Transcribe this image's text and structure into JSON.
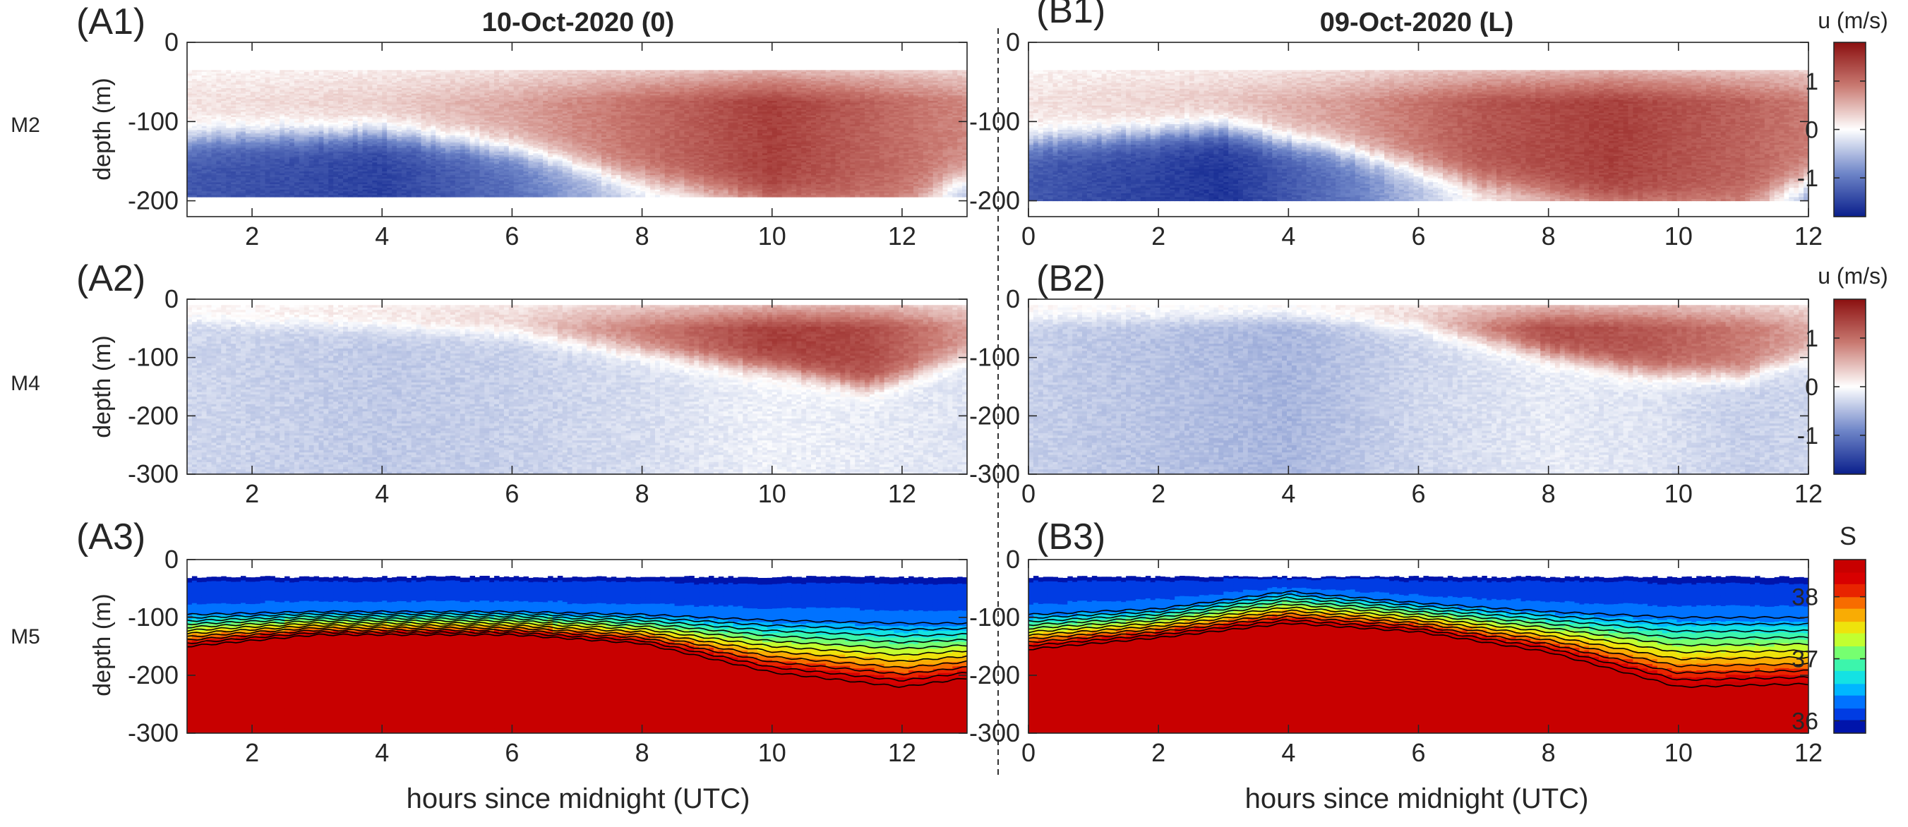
{
  "figure": {
    "columns": [
      {
        "title": "10-Oct-2020 (0)",
        "xlabel": "hours since midnight (UTC)"
      },
      {
        "title": "09-Oct-2020 (L)",
        "xlabel": "hours since midnight (UTC)"
      }
    ],
    "rows": [
      {
        "mooring": "M2",
        "ylabel": "depth (m)"
      },
      {
        "mooring": "M4",
        "ylabel": "depth (m)"
      },
      {
        "mooring": "M5",
        "ylabel": "depth (m)"
      }
    ],
    "colorbars": [
      {
        "label": "u (m/s)",
        "ticks": [
          "1",
          "0",
          "-1"
        ],
        "range": [
          -1.8,
          1.8
        ],
        "colors": [
          "#0a1f8c",
          "#6f86c8",
          "#ffffff",
          "#c97a72",
          "#8b1010"
        ]
      },
      {
        "label": "u (m/s)",
        "ticks": [
          "1",
          "0",
          "-1"
        ],
        "range": [
          -1.8,
          1.8
        ],
        "colors": [
          "#0a1f8c",
          "#6f86c8",
          "#ffffff",
          "#c97a72",
          "#8b1010"
        ]
      },
      {
        "label": "S",
        "ticks": [
          "38",
          "37",
          "36"
        ],
        "range": [
          35.8,
          38.6
        ],
        "colors": [
          "#00008f",
          "#0050ff",
          "#00d8ff",
          "#50ff90",
          "#e8ff10",
          "#ff9000",
          "#e00000",
          "#c00000"
        ]
      }
    ]
  },
  "chart_data": [
    {
      "panel": "(A1)",
      "type": "heatmap",
      "variable": "u (m/s)",
      "x": [
        2,
        4,
        6,
        8,
        10,
        12
      ],
      "xlim": [
        1,
        13
      ],
      "ylim": [
        -220,
        0
      ],
      "yticks": [
        0,
        -100,
        -200
      ],
      "xtick_labels": [
        "2",
        "4",
        "6",
        "8",
        "10",
        "12"
      ],
      "ytick_labels": [
        "0",
        "-100",
        "-200"
      ],
      "data_top": -35,
      "profiles": [
        {
          "x": 1,
          "bottom": -195,
          "u_upper": 0.2,
          "u_lower": -1.3,
          "interface": -120
        },
        {
          "x": 4,
          "bottom": -195,
          "u_upper": 0.35,
          "u_lower": -1.5,
          "interface": -115
        },
        {
          "x": 6,
          "bottom": -195,
          "u_upper": 0.6,
          "u_lower": -1.1,
          "interface": -135
        },
        {
          "x": 8,
          "bottom": -195,
          "u_upper": 1.0,
          "u_lower": -0.3,
          "interface": -175
        },
        {
          "x": 10,
          "bottom": -195,
          "u_upper": 1.4,
          "u_lower": 0.3,
          "interface": -200
        },
        {
          "x": 12,
          "bottom": -195,
          "u_upper": 1.0,
          "u_lower": 0.6,
          "interface": -200
        },
        {
          "x": 13,
          "bottom": -195,
          "u_upper": 0.8,
          "u_lower": -0.6,
          "interface": -170
        }
      ]
    },
    {
      "panel": "(B1)",
      "type": "heatmap",
      "variable": "u (m/s)",
      "x": [
        0,
        2,
        4,
        6,
        8,
        10,
        12
      ],
      "xlim": [
        0,
        12
      ],
      "ylim": [
        -220,
        0
      ],
      "yticks": [
        0,
        -100,
        -200
      ],
      "xtick_labels": [
        "0",
        "2",
        "4",
        "6",
        "8",
        "10",
        "12"
      ],
      "ytick_labels": [
        "0",
        "-100",
        "-200"
      ],
      "data_top": -35,
      "profiles": [
        {
          "x": 0,
          "bottom": -200,
          "u_upper": 0.2,
          "u_lower": -1.3,
          "interface": -125
        },
        {
          "x": 3,
          "bottom": -200,
          "u_upper": 0.4,
          "u_lower": -1.6,
          "interface": -110
        },
        {
          "x": 5,
          "bottom": -200,
          "u_upper": 0.7,
          "u_lower": -1.0,
          "interface": -140
        },
        {
          "x": 7,
          "bottom": -200,
          "u_upper": 1.2,
          "u_lower": 0.0,
          "interface": -180
        },
        {
          "x": 9,
          "bottom": -200,
          "u_upper": 1.4,
          "u_lower": 0.5,
          "interface": -200
        },
        {
          "x": 11,
          "bottom": -200,
          "u_upper": 1.1,
          "u_lower": 0.6,
          "interface": -200
        },
        {
          "x": 12,
          "bottom": -200,
          "u_upper": 0.9,
          "u_lower": -0.7,
          "interface": -175
        }
      ]
    },
    {
      "panel": "(A2)",
      "type": "heatmap",
      "variable": "u (m/s)",
      "x": [
        2,
        4,
        6,
        8,
        10,
        12
      ],
      "xlim": [
        1,
        13
      ],
      "ylim": [
        -300,
        0
      ],
      "yticks": [
        0,
        -100,
        -200,
        -300
      ],
      "xtick_labels": [
        "2",
        "4",
        "6",
        "8",
        "10",
        "12"
      ],
      "ytick_labels": [
        "0",
        "-100",
        "-200",
        "-300"
      ],
      "data_top": -10,
      "profiles": [
        {
          "x": 1,
          "bottom": -300,
          "u_upper": 0.2,
          "u_lower": -0.3,
          "interface": -30
        },
        {
          "x": 4,
          "bottom": -300,
          "u_upper": 0.3,
          "u_lower": -0.4,
          "interface": -45
        },
        {
          "x": 6,
          "bottom": -300,
          "u_upper": 0.4,
          "u_lower": -0.35,
          "interface": -55
        },
        {
          "x": 8,
          "bottom": -300,
          "u_upper": 0.9,
          "u_lower": -0.25,
          "interface": -90
        },
        {
          "x": 10,
          "bottom": -300,
          "u_upper": 1.4,
          "u_lower": -0.1,
          "interface": -120
        },
        {
          "x": 11.5,
          "bottom": -300,
          "u_upper": 1.3,
          "u_lower": -0.15,
          "interface": -150
        },
        {
          "x": 13,
          "bottom": -300,
          "u_upper": 0.7,
          "u_lower": -0.2,
          "interface": -100
        }
      ]
    },
    {
      "panel": "(B2)",
      "type": "heatmap",
      "variable": "u (m/s)",
      "x": [
        0,
        2,
        4,
        6,
        8,
        10,
        12
      ],
      "xlim": [
        0,
        12
      ],
      "ylim": [
        -300,
        0
      ],
      "yticks": [
        0,
        -100,
        -200,
        -300
      ],
      "xtick_labels": [
        "0",
        "2",
        "4",
        "6",
        "8",
        "10",
        "12"
      ],
      "ytick_labels": [
        "0",
        "-100",
        "-200",
        "-300"
      ],
      "data_top": -10,
      "profiles": [
        {
          "x": 0,
          "bottom": -300,
          "u_upper": 0.2,
          "u_lower": -0.35,
          "interface": -25
        },
        {
          "x": 4,
          "bottom": -300,
          "u_upper": 0.2,
          "u_lower": -0.55,
          "interface": -20
        },
        {
          "x": 6,
          "bottom": -300,
          "u_upper": 0.5,
          "u_lower": -0.3,
          "interface": -45
        },
        {
          "x": 8,
          "bottom": -300,
          "u_upper": 1.3,
          "u_lower": -0.15,
          "interface": -95
        },
        {
          "x": 9.5,
          "bottom": -300,
          "u_upper": 1.2,
          "u_lower": -0.2,
          "interface": -125
        },
        {
          "x": 11,
          "bottom": -300,
          "u_upper": 0.9,
          "u_lower": -0.35,
          "interface": -130
        },
        {
          "x": 12,
          "bottom": -300,
          "u_upper": 0.6,
          "u_lower": -0.3,
          "interface": -100
        }
      ]
    },
    {
      "panel": "(A3)",
      "type": "heatmap",
      "variable": "S",
      "x": [
        2,
        4,
        6,
        8,
        10,
        12
      ],
      "xlim": [
        1,
        13
      ],
      "ylim": [
        -300,
        0
      ],
      "yticks": [
        0,
        -100,
        -200,
        -300
      ],
      "xtick_labels": [
        "2",
        "4",
        "6",
        "8",
        "10",
        "12"
      ],
      "ytick_labels": [
        "0",
        "-100",
        "-200",
        "-300"
      ],
      "data_top": -30,
      "profiles": [
        {
          "x": 1,
          "top_s": 36.0,
          "halocline_top": -95,
          "halocline_bottom": -150
        },
        {
          "x": 3,
          "top_s": 36.0,
          "halocline_top": -90,
          "halocline_bottom": -130
        },
        {
          "x": 6,
          "top_s": 36.0,
          "halocline_top": -90,
          "halocline_bottom": -130
        },
        {
          "x": 8,
          "top_s": 36.0,
          "halocline_top": -95,
          "halocline_bottom": -145
        },
        {
          "x": 10,
          "top_s": 36.0,
          "halocline_top": -105,
          "halocline_bottom": -195
        },
        {
          "x": 12,
          "top_s": 36.0,
          "halocline_top": -110,
          "halocline_bottom": -220
        },
        {
          "x": 13,
          "top_s": 36.0,
          "halocline_top": -110,
          "halocline_bottom": -205
        }
      ],
      "contours": 10
    },
    {
      "panel": "(B3)",
      "type": "heatmap",
      "variable": "S",
      "x": [
        0,
        2,
        4,
        6,
        8,
        10,
        12
      ],
      "xlim": [
        0,
        12
      ],
      "ylim": [
        -300,
        0
      ],
      "yticks": [
        0,
        -100,
        -200,
        -300
      ],
      "xtick_labels": [
        "0",
        "2",
        "4",
        "6",
        "8",
        "10",
        "12"
      ],
      "ytick_labels": [
        "0",
        "-100",
        "-200",
        "-300"
      ],
      "data_top": -30,
      "profiles": [
        {
          "x": 0,
          "top_s": 36.0,
          "halocline_top": -95,
          "halocline_bottom": -155
        },
        {
          "x": 2,
          "top_s": 36.0,
          "halocline_top": -85,
          "halocline_bottom": -135
        },
        {
          "x": 4,
          "top_s": 36.0,
          "halocline_top": -55,
          "halocline_bottom": -110
        },
        {
          "x": 6,
          "top_s": 36.0,
          "halocline_top": -75,
          "halocline_bottom": -125
        },
        {
          "x": 8,
          "top_s": 36.0,
          "halocline_top": -90,
          "halocline_bottom": -160
        },
        {
          "x": 10,
          "top_s": 36.0,
          "halocline_top": -100,
          "halocline_bottom": -220
        },
        {
          "x": 12,
          "top_s": 36.0,
          "halocline_top": -100,
          "halocline_bottom": -215
        }
      ],
      "contours": 10
    }
  ]
}
